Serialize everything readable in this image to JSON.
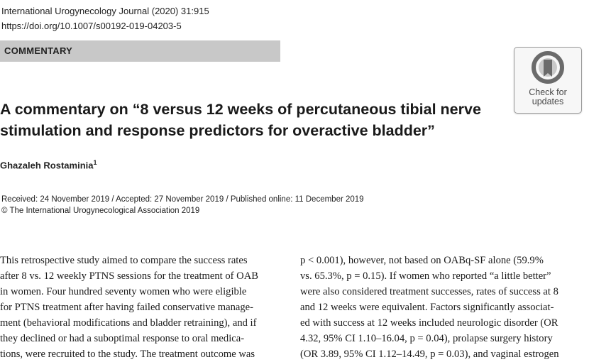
{
  "header": {
    "journal_citation": "International Urogynecology Journal (2020) 31:915",
    "doi": "https://doi.org/10.1007/s00192-019-04203-5"
  },
  "section": {
    "label": "COMMENTARY"
  },
  "badge": {
    "icon": "check-for-updates-icon",
    "line1": "Check for",
    "line2": "updates"
  },
  "article": {
    "title_lines": [
      "A commentary on “8 versus 12 weeks of percutaneous tibial nerve",
      "stimulation and response predictors for overactive bladder”"
    ],
    "author": "Ghazaleh Rostaminia",
    "author_affiliation_mark": "1",
    "dates": "Received: 24 November 2019 / Accepted: 27 November 2019 / Published online: 11 December 2019",
    "copyright": "© The International Urogynecological Association 2019"
  },
  "body": {
    "left_lines": [
      "This retrospective study aimed to compare the success rates",
      "after 8 vs. 12 weekly PTNS sessions for the treatment of OAB",
      "in women. Four hundred seventy women who were eligible",
      "for PTNS treatment after having failed conservative manage-",
      "ment (behavioral modifications and bladder retraining), and if",
      "they declined or had a suboptimal response to oral medica-",
      "tions, were recruited to the study. The treatment outcome was"
    ],
    "right_lines": [
      "p < 0.001), however, not based on OABq-SF alone (59.9%",
      "vs. 65.3%, p = 0.15). If women who reported “a little better”",
      "were also considered treatment successes, rates of success at 8",
      "and 12 weeks were equivalent. Factors significantly associat-",
      "ed with success at 12 weeks included neurologic disorder (OR",
      "4.32, 95% CI 1.10–16.04, p = 0.04), prolapse surgery history",
      "(OR 3.89, 95% CI 1.12–14.49, p = 0.03), and vaginal estrogen"
    ]
  },
  "colors": {
    "section_bar": "#c8c8c8",
    "badge_border": "#9a9a9a",
    "badge_icon": "#6b6b6b"
  }
}
